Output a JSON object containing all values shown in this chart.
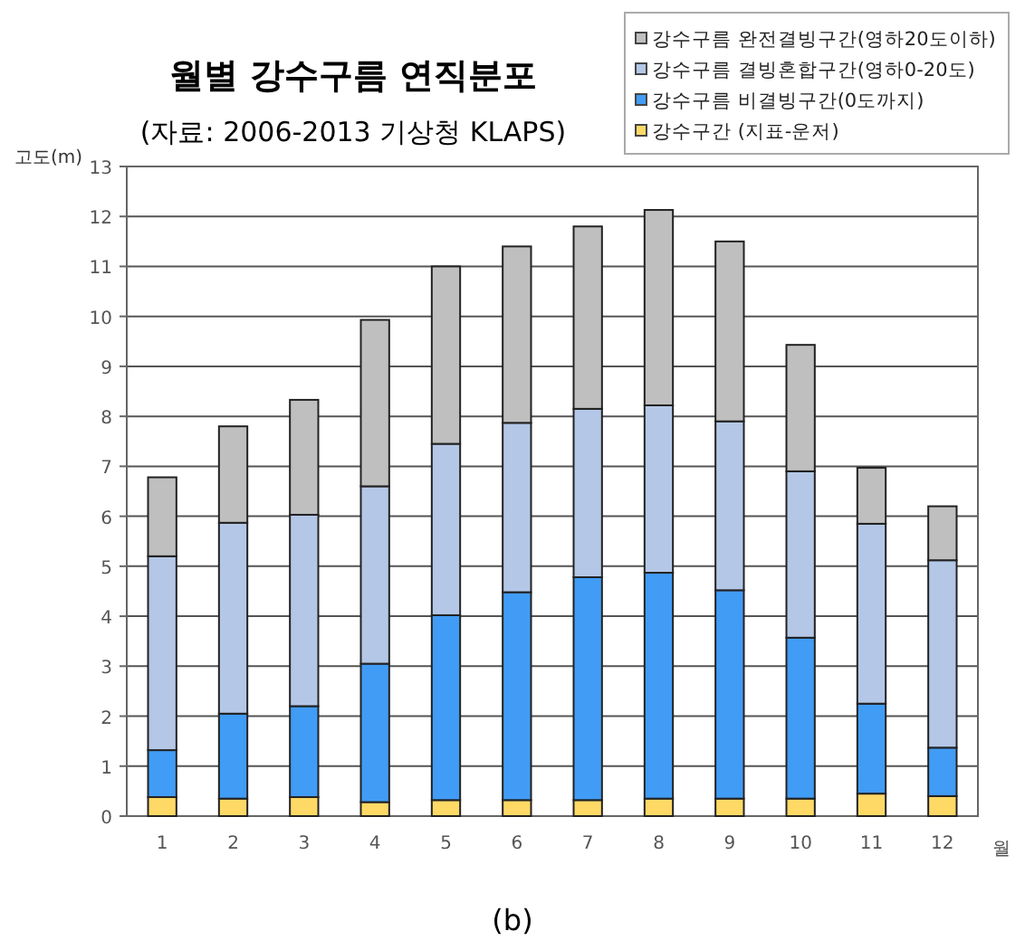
{
  "chart_data": {
    "type": "bar",
    "stacked": true,
    "title": "월별 강수구름 연직분포",
    "subtitle": "(자료: 2006-2013 기상청 KLAPS)",
    "xlabel": "월",
    "ylabel": "고도(m)",
    "categories": [
      "1",
      "2",
      "3",
      "4",
      "5",
      "6",
      "7",
      "8",
      "9",
      "10",
      "11",
      "12"
    ],
    "series": [
      {
        "name": "강수구간 (지표-운저)",
        "color": "#ffd966",
        "values": [
          0.38,
          0.35,
          0.38,
          0.28,
          0.32,
          0.32,
          0.32,
          0.35,
          0.35,
          0.35,
          0.45,
          0.4
        ]
      },
      {
        "name": "강수구름 비결빙구간(0도까지)",
        "color": "#419cf5",
        "values": [
          0.94,
          1.7,
          1.82,
          2.77,
          3.7,
          4.16,
          4.46,
          4.52,
          4.17,
          3.22,
          1.8,
          0.97
        ]
      },
      {
        "name": "강수구름 결빙혼합구간(영하0-20도)",
        "color": "#b4c7e7",
        "values": [
          3.88,
          3.82,
          3.83,
          3.55,
          3.43,
          3.39,
          3.37,
          3.35,
          3.38,
          3.33,
          3.6,
          3.75
        ]
      },
      {
        "name": "강수구름 완전결빙구간(영하20도이하)",
        "color": "#bfbfbf",
        "values": [
          1.58,
          1.93,
          2.3,
          3.33,
          3.55,
          3.53,
          3.65,
          3.91,
          3.6,
          2.53,
          1.12,
          1.08
        ]
      }
    ],
    "ylim": [
      0,
      13
    ],
    "yticks": [
      0,
      1,
      2,
      3,
      4,
      5,
      6,
      7,
      8,
      9,
      10,
      11,
      12,
      13
    ],
    "grid": "y",
    "legend": "top right",
    "annotations": [
      "(b)"
    ]
  }
}
